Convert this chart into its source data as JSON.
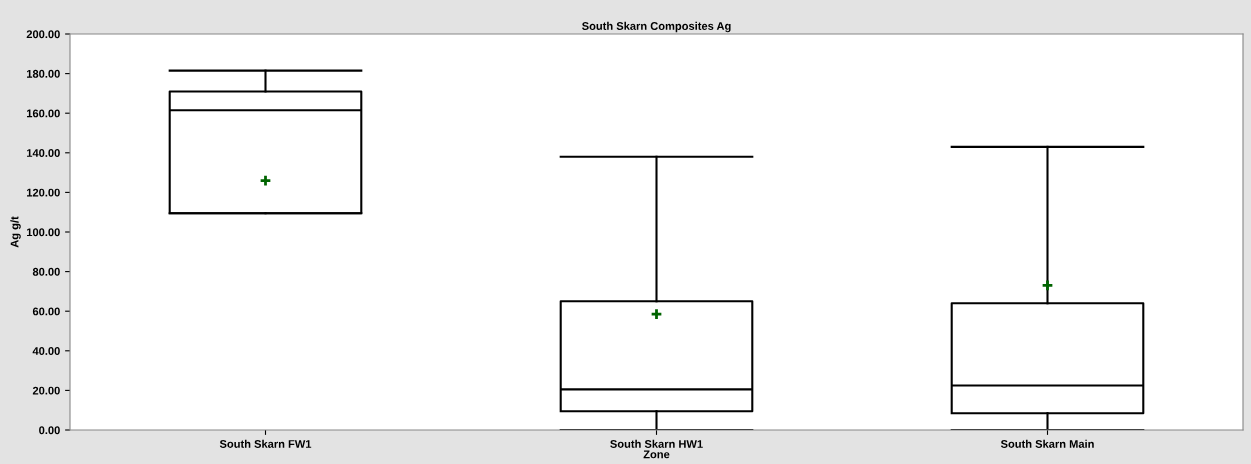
{
  "chart_data": {
    "type": "box",
    "title": "South Skarn Composites Ag",
    "xlabel": "Zone",
    "ylabel": "Ag g/t",
    "categories": [
      "South Skarn FW1",
      "South Skarn HW1",
      "South Skarn Main"
    ],
    "boxes": [
      {
        "low": 109.5,
        "q1": 109.5,
        "median": 161.5,
        "q3": 171,
        "high": 181.5,
        "mean": 126
      },
      {
        "low": 0,
        "q1": 9.5,
        "median": 20.5,
        "q3": 65,
        "high": 138,
        "mean": 58.5
      },
      {
        "low": 0,
        "q1": 8.5,
        "median": 22.5,
        "q3": 64,
        "high": 143,
        "mean": 73
      }
    ],
    "color": "#000000",
    "ylim": [
      0,
      200
    ],
    "yticks": [
      {
        "value": 0,
        "label": "0.00"
      },
      {
        "value": 20,
        "label": "20.00"
      },
      {
        "value": 40,
        "label": "40.00"
      },
      {
        "value": 60,
        "label": "60.00"
      },
      {
        "value": 80,
        "label": "80.00"
      },
      {
        "value": 100,
        "label": "100.00"
      },
      {
        "value": 120,
        "label": "120.00"
      },
      {
        "value": 140,
        "label": "140.00"
      },
      {
        "value": 160,
        "label": "160.00"
      },
      {
        "value": 180,
        "label": "180.00"
      },
      {
        "value": 200,
        "label": "200.00"
      }
    ],
    "grid": false
  }
}
